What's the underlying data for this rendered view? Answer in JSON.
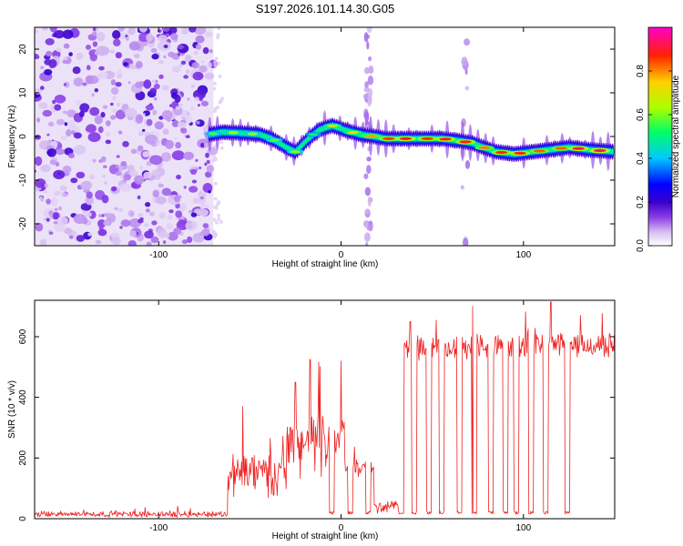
{
  "title": "S197.2026.101.14.30.G05",
  "chart_data": [
    {
      "type": "heatmap",
      "title": "S197.2026.101.14.30.G05",
      "xlabel": "Height of straight line (km)",
      "ylabel": "Frequency (Hz)",
      "xlim": [
        -168,
        150
      ],
      "ylim": [
        -25,
        25
      ],
      "xticks": [
        -100,
        0,
        100
      ],
      "yticks": [
        -20,
        -10,
        0,
        10,
        20
      ],
      "colorbar": {
        "label": "Normalized spectral amplitude",
        "range": [
          0,
          1
        ],
        "ticks": [
          0.0,
          0.2,
          0.4,
          0.6,
          0.8
        ],
        "tick_labels": [
          "0.0",
          "0.2",
          "0.4",
          "0.6",
          "0.8"
        ],
        "colormap": [
          "#ffffff",
          "#d9c2f2",
          "#8a3ee6",
          "#3a00cc",
          "#0000ff",
          "#00c8ff",
          "#00ff66",
          "#aaff00",
          "#ffd000",
          "#ff2200",
          "#ff00cc"
        ]
      },
      "noise_region_x": [
        -168,
        -70
      ],
      "gap_stripes_x": [
        15,
        68
      ],
      "ridge": {
        "x": [
          -72,
          -65,
          -55,
          -45,
          -38,
          -30,
          -25,
          -18,
          -12,
          -5,
          2,
          10,
          18,
          25,
          35,
          45,
          55,
          65,
          72,
          78,
          85,
          95,
          105,
          115,
          125,
          135,
          150
        ],
        "freq": [
          0.5,
          1.0,
          0.8,
          0.5,
          -0.5,
          -2.5,
          -3.5,
          -0.5,
          1.5,
          2.5,
          1.5,
          0.5,
          0.0,
          -0.5,
          -0.5,
          -0.5,
          -0.5,
          -1.0,
          -1.5,
          -2.5,
          -3.5,
          -4.0,
          -3.5,
          -3.0,
          -2.5,
          -3.0,
          -3.5
        ],
        "amplitude": [
          0.55,
          0.6,
          0.65,
          0.6,
          0.55,
          0.7,
          0.6,
          0.5,
          0.55,
          0.7,
          0.75,
          0.7,
          0.8,
          0.85,
          0.9,
          0.85,
          0.9,
          0.85,
          0.9,
          0.8,
          0.85,
          0.9,
          0.85,
          0.8,
          0.85,
          0.95,
          0.9
        ]
      }
    },
    {
      "type": "line",
      "xlabel": "Height of straight line (km)",
      "ylabel": "SNR (10 * v/v)",
      "xlim": [
        -168,
        150
      ],
      "ylim": [
        0,
        720
      ],
      "xticks": [
        -100,
        0,
        100
      ],
      "yticks": [
        0,
        200,
        400,
        600
      ],
      "color": "#ee2222",
      "segments": [
        {
          "from": -168,
          "to": -62,
          "base": 15,
          "noise": 12
        },
        {
          "from": -62,
          "to": -30,
          "base": 150,
          "noise": 90
        },
        {
          "from": -30,
          "to": -5,
          "base": 250,
          "noise": 120
        },
        {
          "from": -5,
          "to": 2,
          "base": 280,
          "noise": 100
        },
        {
          "from": 2,
          "to": 18,
          "base": 170,
          "noise": 50
        },
        {
          "from": 18,
          "to": 34,
          "base": 40,
          "noise": 25
        },
        {
          "from": 34,
          "to": 150,
          "base": 570,
          "noise": 50
        }
      ],
      "dropouts_x": [
        -5,
        5,
        15,
        33,
        40,
        48,
        55,
        65,
        73,
        82,
        90,
        96,
        104,
        112,
        124
      ],
      "dropout_value": 15,
      "spikes": [
        {
          "x": -54,
          "y": 370
        },
        {
          "x": -25,
          "y": 450
        },
        {
          "x": -17,
          "y": 525
        },
        {
          "x": 0,
          "y": 520
        },
        {
          "x": 38,
          "y": 650
        },
        {
          "x": 72,
          "y": 700
        },
        {
          "x": 115,
          "y": 715
        }
      ]
    }
  ]
}
